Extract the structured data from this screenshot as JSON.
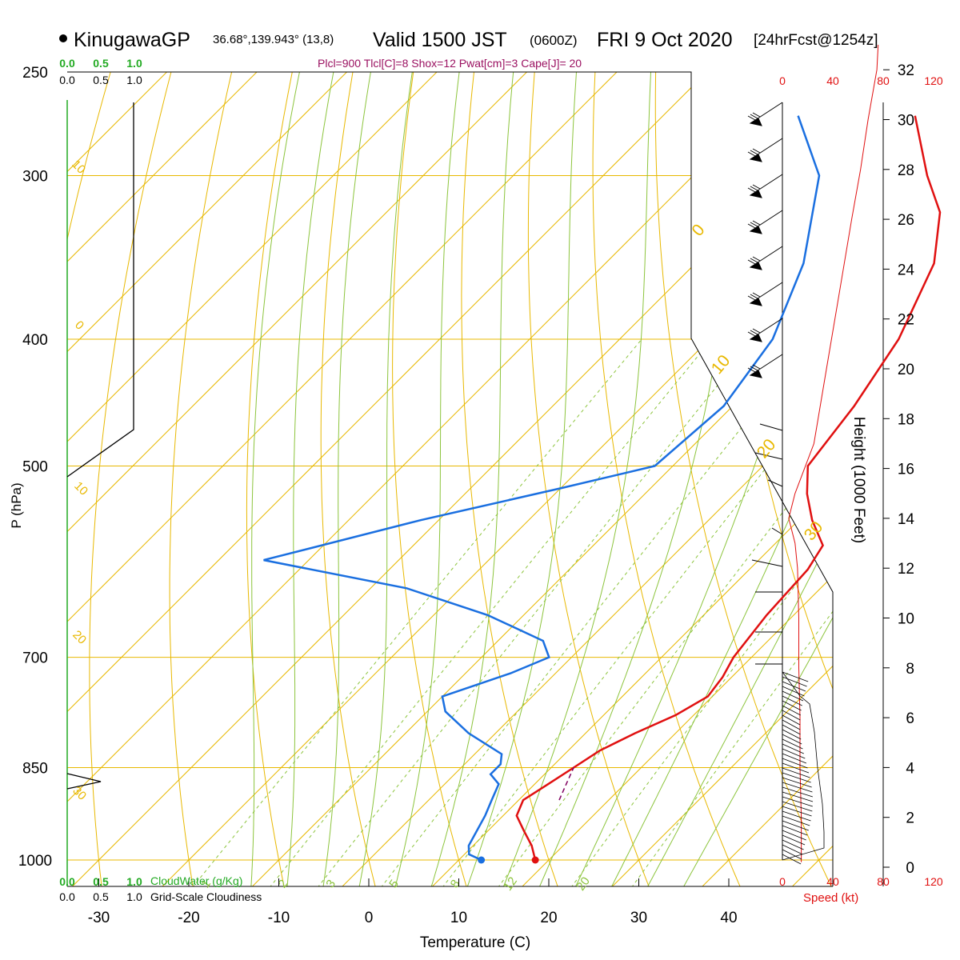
{
  "header": {
    "station": "KinugawaGP",
    "coords": "36.68°,139.943° (13,8)",
    "valid_main": "Valid 1500 JST",
    "valid_utc": "(0600Z)",
    "valid_date": "FRI 9 Oct 2020",
    "forecast": "[24hrFcst@1254z]",
    "indices": "Plcl=900 Tlcl[C]=8 Shox=12 Pwat[cm]=3 Cape[J]= 20"
  },
  "colors": {
    "temperature": "#e01010",
    "dewpoint": "#1a6fe0",
    "isobar": "#e8b800",
    "dry_adiabat": "#e8b800",
    "isotherm": "#e8b800",
    "moist_adiabat": "#8cc43c",
    "mixing_ratio": "#8cc43c",
    "cloudwater": "#22aa22",
    "speed": "#e01010",
    "parcel": "#800060"
  },
  "chart_data": {
    "type": "line",
    "xlabel": "Temperature (C)",
    "ylabel": "P (hPa)",
    "height_label": "Height (1000 Feet)",
    "x_ticks": [
      "-30",
      "-20",
      "-10",
      "0",
      "10",
      "20",
      "30",
      "40"
    ],
    "p_ticks": [
      "250",
      "300",
      "400",
      "500",
      "700",
      "850",
      "1000"
    ],
    "height_ticks": [
      "0",
      "2",
      "4",
      "6",
      "8",
      "10",
      "12",
      "14",
      "16",
      "18",
      "20",
      "22",
      "24",
      "26",
      "28",
      "30",
      "32"
    ],
    "isobar_values_hpa": [
      250,
      300,
      400,
      500,
      700,
      850,
      1000
    ],
    "dry_adiabat_labels": [
      "10",
      "0",
      "10",
      "20",
      "30",
      "0",
      "10",
      "20",
      "30"
    ],
    "mixing_ratio_labels": [
      "1",
      "2",
      "3",
      "5",
      "8",
      "12",
      "20"
    ],
    "cloudwater": {
      "label": "CloudWater (g/Kg)",
      "ticks": [
        "0.0",
        "0.5",
        "1.0"
      ]
    },
    "cloudiness": {
      "label": "Grid-Scale Cloudiness",
      "ticks": [
        "0.0",
        "0.5",
        "1.0"
      ]
    },
    "speed": {
      "label": "Speed (kt)",
      "ticks": [
        "0",
        "40",
        "80",
        "120"
      ]
    },
    "series": [
      {
        "key": "temperature",
        "points": [
          [
            18.5,
            1000
          ],
          [
            16.5,
            975
          ],
          [
            14.0,
            950
          ],
          [
            11.5,
            925
          ],
          [
            10.5,
            900
          ],
          [
            11.5,
            875
          ],
          [
            12.5,
            850
          ],
          [
            13.5,
            825
          ],
          [
            15.5,
            800
          ],
          [
            18.0,
            775
          ],
          [
            19.5,
            750
          ],
          [
            19.0,
            725
          ],
          [
            18.0,
            700
          ],
          [
            17.0,
            650
          ],
          [
            16.5,
            600
          ],
          [
            15.5,
            575
          ],
          [
            11.5,
            550
          ],
          [
            8.0,
            525
          ],
          [
            5.0,
            500
          ],
          [
            3.5,
            450
          ],
          [
            1.0,
            400
          ],
          [
            -3.5,
            350
          ],
          [
            -8.5,
            320
          ],
          [
            -14.0,
            300
          ],
          [
            -22.0,
            270
          ]
        ]
      },
      {
        "key": "dewpoint",
        "points": [
          [
            12.5,
            1000
          ],
          [
            10.5,
            990
          ],
          [
            9.5,
            975
          ],
          [
            8.0,
            925
          ],
          [
            7.0,
            900
          ],
          [
            6.0,
            875
          ],
          [
            4.0,
            860
          ],
          [
            4.0,
            845
          ],
          [
            3.0,
            830
          ],
          [
            -3.0,
            800
          ],
          [
            -8.0,
            770
          ],
          [
            -10.0,
            750
          ],
          [
            -5.0,
            720
          ],
          [
            -2.5,
            700
          ],
          [
            -5.0,
            680
          ],
          [
            -14.0,
            650
          ],
          [
            -26.0,
            620
          ],
          [
            -45.0,
            590
          ],
          [
            -32.0,
            550
          ],
          [
            -20.0,
            520
          ],
          [
            -12.0,
            500
          ],
          [
            -11.0,
            450
          ],
          [
            -13.0,
            400
          ],
          [
            -18.0,
            350
          ],
          [
            -26.0,
            300
          ],
          [
            -35.0,
            270
          ]
        ]
      },
      {
        "key": "parcel",
        "points": [
          [
            14.5,
            900
          ],
          [
            13.5,
            875
          ],
          [
            12.5,
            850
          ]
        ]
      },
      {
        "key": "speed_profile",
        "points": [
          [
            15,
            0.2
          ],
          [
            15,
            2
          ],
          [
            14,
            4
          ],
          [
            14,
            6
          ],
          [
            13,
            8
          ],
          [
            13,
            10
          ],
          [
            12,
            12
          ],
          [
            10,
            13
          ],
          [
            5,
            14
          ],
          [
            10,
            15
          ],
          [
            25,
            17
          ],
          [
            35,
            20
          ],
          [
            45,
            23
          ],
          [
            55,
            26
          ],
          [
            62,
            28
          ],
          [
            68,
            30
          ],
          [
            75,
            32
          ],
          [
            76,
            33
          ]
        ]
      }
    ],
    "surface_markers": [
      {
        "key": "temperature",
        "point": [
          18.5,
          1000
        ]
      },
      {
        "key": "dewpoint",
        "point": [
          12.5,
          1000
        ]
      }
    ]
  }
}
